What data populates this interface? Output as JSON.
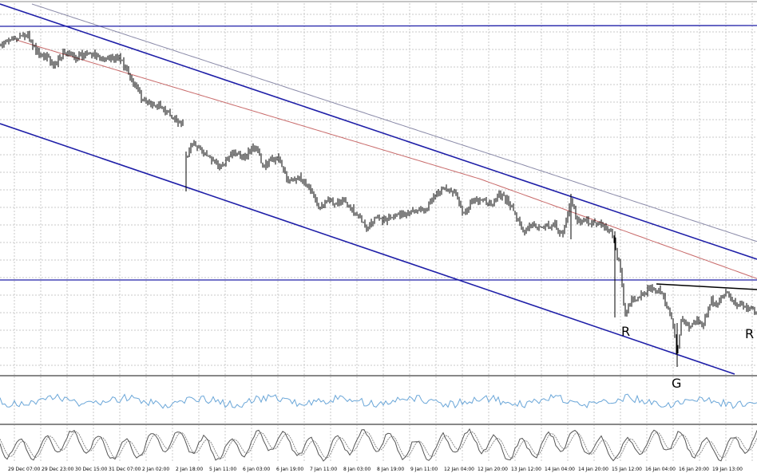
{
  "chart_data": {
    "type": "line",
    "annotations": [
      {
        "text": "R",
        "anchor": 0
      },
      {
        "text": "G",
        "anchor": 1
      },
      {
        "text": "R",
        "anchor": 2
      }
    ],
    "x_ticks": [
      "29 Dec 07:00",
      "29 Dec 23:00",
      "30 Dec 15:00",
      "31 Dec 07:00",
      "2 Jan 02:00",
      "2 Jan 18:00",
      "5 Jan 11:00",
      "6 Jan 03:00",
      "6 Jan 19:00",
      "7 Jan 11:00",
      "8 Jan 03:00",
      "8 Jan 19:00",
      "9 Jan 11:00",
      "12 Jan 04:00",
      "12 Jan 20:00",
      "13 Jan 12:00",
      "14 Jan 04:00",
      "14 Jan 20:00",
      "15 Jan 12:00",
      "16 Jan 04:00",
      "16 Jan 20:00",
      "19 Jan 13:00"
    ],
    "colors": {
      "price": "#000000",
      "trend_lines": "#1f1fa8",
      "ma_fast": "#c86a6a",
      "ma_slow": "#8a8aa8",
      "rsi": "#6aa6d8",
      "stochastic_main": "#555555",
      "stochastic_signal": "#8a8a8a",
      "grid": "#c8c8c8",
      "separator": "#888888",
      "neckline": "#000000"
    },
    "panels": [
      "price",
      "rsi",
      "stochastic"
    ]
  }
}
